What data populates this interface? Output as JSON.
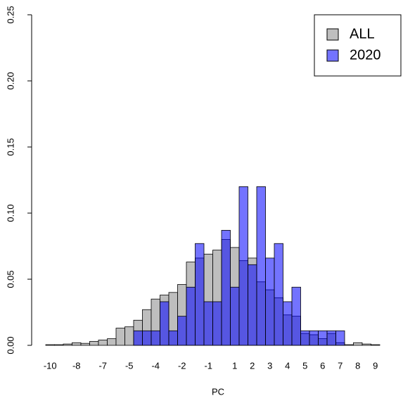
{
  "chart_data": {
    "type": "histogram",
    "xlabel": "PC",
    "bins": [
      0,
      1,
      2,
      3,
      4,
      5,
      6,
      7,
      8,
      9,
      10,
      11,
      12,
      13,
      14,
      15,
      16,
      17,
      18,
      19,
      20,
      21,
      22,
      23,
      24,
      25,
      26,
      27,
      28,
      29,
      30,
      31,
      32,
      33,
      34,
      35,
      36,
      37,
      38,
      39
    ],
    "series": [
      {
        "name": "ALL",
        "color": "#bebebe",
        "values": [
          0.0005,
          0.0005,
          0.001,
          0.002,
          0.0015,
          0.003,
          0.004,
          0.005,
          0.013,
          0.014,
          0.019,
          0.027,
          0.035,
          0.038,
          0.04,
          0.046,
          0.063,
          0.066,
          0.069,
          0.072,
          0.08,
          0.074,
          0.064,
          0.066,
          0.048,
          0.042,
          0.036,
          0.023,
          0.022,
          0.009,
          0.008,
          0.005,
          0.009,
          0.002,
          0.0005,
          0.002,
          0.001,
          0.0005,
          0
        ]
      },
      {
        "name": "2020",
        "color": "#0000ff",
        "values": [
          0,
          0,
          0,
          0,
          0,
          0,
          0,
          0,
          0,
          0,
          0.011,
          0.011,
          0.011,
          0.033,
          0.011,
          0.022,
          0.044,
          0.077,
          0.033,
          0.033,
          0.087,
          0.044,
          0.12,
          0.061,
          0.12,
          0.066,
          0.077,
          0.033,
          0.044,
          0.011,
          0.011,
          0.011,
          0.011,
          0.011,
          0,
          0,
          0,
          0,
          0
        ]
      }
    ],
    "xlim": [
      -1.6,
      40.4
    ],
    "xticks": [
      {
        "value": 0.5,
        "label": "-10"
      },
      {
        "value": 3.5,
        "label": "-8"
      },
      {
        "value": 6.5,
        "label": "-7"
      },
      {
        "value": 9.5,
        "label": "-5"
      },
      {
        "value": 12.5,
        "label": "-4"
      },
      {
        "value": 15.5,
        "label": "-2"
      },
      {
        "value": 18.5,
        "label": "-1"
      },
      {
        "value": 21.5,
        "label": "1"
      },
      {
        "value": 23.5,
        "label": "2"
      },
      {
        "value": 25.5,
        "label": "3"
      },
      {
        "value": 27.5,
        "label": "4"
      },
      {
        "value": 29.5,
        "label": "5"
      },
      {
        "value": 31.5,
        "label": "6"
      },
      {
        "value": 33.5,
        "label": "7"
      },
      {
        "value": 35.5,
        "label": "8"
      },
      {
        "value": 37.5,
        "label": "9"
      }
    ],
    "ylim": [
      0,
      0.25
    ],
    "yticks": [
      {
        "value": 0,
        "label": "0.00"
      },
      {
        "value": 0.05,
        "label": "0.05"
      },
      {
        "value": 0.1,
        "label": "0.10"
      },
      {
        "value": 0.15,
        "label": "0.15"
      },
      {
        "value": 0.2,
        "label": "0.20"
      },
      {
        "value": 0.25,
        "label": "0.25"
      }
    ],
    "legend": "top-right"
  }
}
